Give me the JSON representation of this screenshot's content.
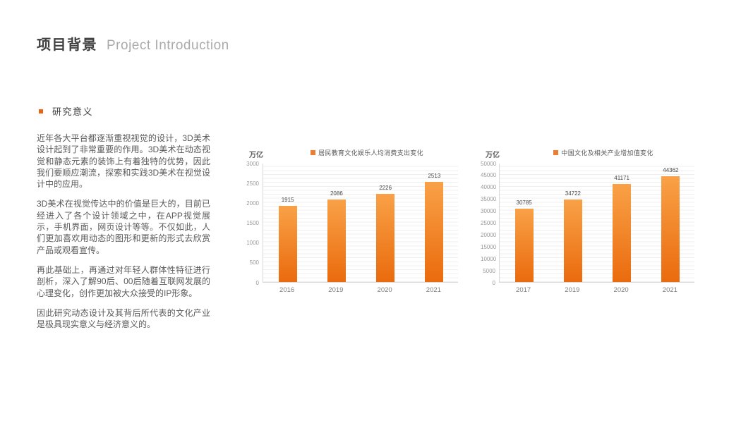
{
  "slide": {
    "title_zh": "项目背景",
    "title_en": "Project Introduction",
    "section_label": "研究意义",
    "paragraphs": [
      "近年各大平台都逐渐重视视觉的设计，3D美术设计起到了非常重要的作用。3D美术在动态视觉和静态元素的装饰上有着独特的优势，因此我们要顺应潮流，探索和实践3D美术在视觉设计中的应用。",
      "3D美术在视觉传达中的价值是巨大的，目前已经进入了各个设计领域之中，在APP视觉展示，手机界面，网页设计等等。不仅如此，人们更加喜欢用动态的图形和更新的形式去欣赏产品或观看宣传。",
      "再此基础上，再通过对年轻人群体性特征进行剖析，深入了解90后、00后随着互联网发展的心理变化，创作更加被大众接受的IP形象。",
      "因此研究动态设计及其背后所代表的文化产业是极具现实意义与经济意义的。"
    ]
  },
  "colors": {
    "accent": "#ED7D31",
    "bullet": "#E8650F",
    "bar_top": "#F9A147",
    "bar_bottom": "#EA6B0D",
    "gridline": "#efefef"
  },
  "chart_data": [
    {
      "type": "bar",
      "title": "居民教育文化娱乐人均消费支出变化",
      "unit_label": "万亿",
      "categories": [
        "2016",
        "2019",
        "2020",
        "2021"
      ],
      "values": [
        1915,
        2086,
        2226,
        2513
      ],
      "ylim": [
        0,
        3000
      ],
      "yticks": [
        0,
        500,
        1000,
        1500,
        2000,
        2500,
        3000
      ],
      "xlabel": "",
      "ylabel": "万亿",
      "grid": true,
      "legend_position": "top"
    },
    {
      "type": "bar",
      "title": "中国文化及相关产业增加值变化",
      "unit_label": "万亿",
      "categories": [
        "2017",
        "2019",
        "2020",
        "2021"
      ],
      "values": [
        30785,
        34722,
        41171,
        44362
      ],
      "ylim": [
        0,
        50000
      ],
      "yticks": [
        0,
        5000,
        10000,
        15000,
        20000,
        25000,
        30000,
        35000,
        40000,
        45000,
        50000
      ],
      "xlabel": "",
      "ylabel": "万亿",
      "grid": true,
      "legend_position": "top"
    }
  ]
}
